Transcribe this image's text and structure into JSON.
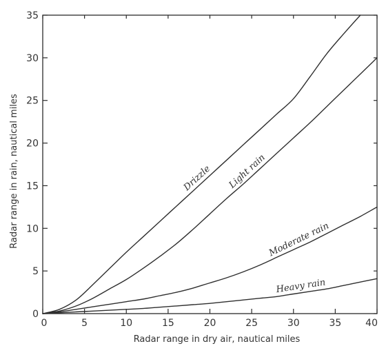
{
  "chart_data": {
    "type": "line",
    "xlabel": "Radar range in dry air, nautical miles",
    "ylabel": "Radar range in rain, nautical miles",
    "xlim": [
      0,
      40
    ],
    "ylim": [
      0,
      35
    ],
    "xticks": [
      0,
      5,
      10,
      15,
      20,
      25,
      30,
      35,
      40
    ],
    "yticks": [
      0,
      5,
      10,
      15,
      20,
      25,
      30,
      35
    ],
    "grid": false,
    "legend": "none",
    "series": [
      {
        "name": "Drizzle",
        "x": [
          0,
          2,
          4,
          6,
          8,
          10,
          12,
          14,
          16,
          18,
          20,
          22,
          24,
          26,
          28,
          30,
          32,
          34,
          36,
          38
        ],
        "y": [
          0,
          0.5,
          1.6,
          3.4,
          5.3,
          7.2,
          9.0,
          10.8,
          12.6,
          14.4,
          16.2,
          18.0,
          19.8,
          21.6,
          23.4,
          25.2,
          27.8,
          30.5,
          32.8,
          35.0
        ]
      },
      {
        "name": "Light rain",
        "x": [
          0,
          2,
          4,
          6,
          8,
          10,
          12,
          14,
          16,
          18,
          20,
          22,
          24,
          26,
          28,
          30,
          32,
          34,
          36,
          38,
          40
        ],
        "y": [
          0,
          0.3,
          0.9,
          1.8,
          2.9,
          4.0,
          5.3,
          6.7,
          8.2,
          9.9,
          11.7,
          13.5,
          15.2,
          17.0,
          18.8,
          20.6,
          22.4,
          24.3,
          26.2,
          28.1,
          30.0
        ]
      },
      {
        "name": "Moderate rain",
        "x": [
          0,
          2,
          4,
          6,
          8,
          10,
          12,
          14,
          16,
          18,
          20,
          22,
          24,
          26,
          28,
          30,
          32,
          34,
          36,
          38,
          40
        ],
        "y": [
          0,
          0.2,
          0.5,
          0.8,
          1.1,
          1.4,
          1.7,
          2.1,
          2.5,
          3.0,
          3.6,
          4.2,
          4.9,
          5.7,
          6.6,
          7.5,
          8.4,
          9.4,
          10.4,
          11.4,
          12.5
        ]
      },
      {
        "name": "Heavy rain",
        "x": [
          0,
          2,
          4,
          6,
          8,
          10,
          12,
          14,
          16,
          18,
          20,
          22,
          24,
          26,
          28,
          30,
          32,
          34,
          36,
          38,
          40
        ],
        "y": [
          0,
          0.1,
          0.2,
          0.3,
          0.4,
          0.5,
          0.6,
          0.75,
          0.9,
          1.05,
          1.2,
          1.4,
          1.6,
          1.8,
          2.0,
          2.3,
          2.6,
          2.9,
          3.3,
          3.7,
          4.1
        ]
      }
    ]
  }
}
